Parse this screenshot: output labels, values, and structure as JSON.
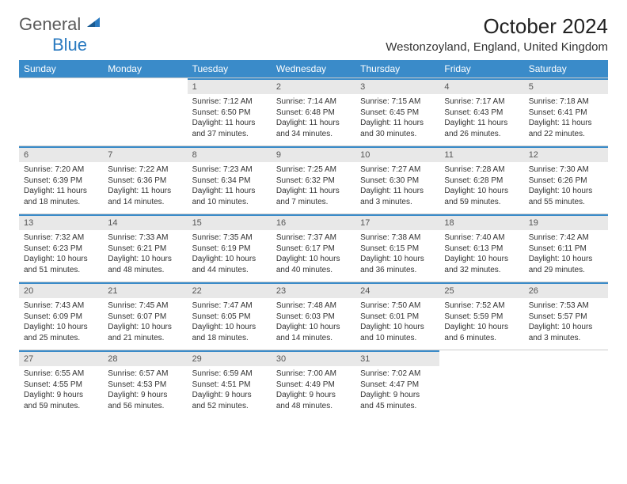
{
  "logo": {
    "text_a": "General",
    "text_b": "Blue"
  },
  "title": "October 2024",
  "location": "Westonzoyland, England, United Kingdom",
  "colors": {
    "header_bg": "#3a8bc9",
    "header_fg": "#ffffff",
    "daynum_bg": "#e8e8e8",
    "daynum_border": "#3a8bc9",
    "body_bg": "#ffffff",
    "text": "#333333"
  },
  "dayNames": [
    "Sunday",
    "Monday",
    "Tuesday",
    "Wednesday",
    "Thursday",
    "Friday",
    "Saturday"
  ],
  "firstDayIndex": 2,
  "days": [
    {
      "n": 1,
      "sunrise": "7:12 AM",
      "sunset": "6:50 PM",
      "daylight": "11 hours and 37 minutes."
    },
    {
      "n": 2,
      "sunrise": "7:14 AM",
      "sunset": "6:48 PM",
      "daylight": "11 hours and 34 minutes."
    },
    {
      "n": 3,
      "sunrise": "7:15 AM",
      "sunset": "6:45 PM",
      "daylight": "11 hours and 30 minutes."
    },
    {
      "n": 4,
      "sunrise": "7:17 AM",
      "sunset": "6:43 PM",
      "daylight": "11 hours and 26 minutes."
    },
    {
      "n": 5,
      "sunrise": "7:18 AM",
      "sunset": "6:41 PM",
      "daylight": "11 hours and 22 minutes."
    },
    {
      "n": 6,
      "sunrise": "7:20 AM",
      "sunset": "6:39 PM",
      "daylight": "11 hours and 18 minutes."
    },
    {
      "n": 7,
      "sunrise": "7:22 AM",
      "sunset": "6:36 PM",
      "daylight": "11 hours and 14 minutes."
    },
    {
      "n": 8,
      "sunrise": "7:23 AM",
      "sunset": "6:34 PM",
      "daylight": "11 hours and 10 minutes."
    },
    {
      "n": 9,
      "sunrise": "7:25 AM",
      "sunset": "6:32 PM",
      "daylight": "11 hours and 7 minutes."
    },
    {
      "n": 10,
      "sunrise": "7:27 AM",
      "sunset": "6:30 PM",
      "daylight": "11 hours and 3 minutes."
    },
    {
      "n": 11,
      "sunrise": "7:28 AM",
      "sunset": "6:28 PM",
      "daylight": "10 hours and 59 minutes."
    },
    {
      "n": 12,
      "sunrise": "7:30 AM",
      "sunset": "6:26 PM",
      "daylight": "10 hours and 55 minutes."
    },
    {
      "n": 13,
      "sunrise": "7:32 AM",
      "sunset": "6:23 PM",
      "daylight": "10 hours and 51 minutes."
    },
    {
      "n": 14,
      "sunrise": "7:33 AM",
      "sunset": "6:21 PM",
      "daylight": "10 hours and 48 minutes."
    },
    {
      "n": 15,
      "sunrise": "7:35 AM",
      "sunset": "6:19 PM",
      "daylight": "10 hours and 44 minutes."
    },
    {
      "n": 16,
      "sunrise": "7:37 AM",
      "sunset": "6:17 PM",
      "daylight": "10 hours and 40 minutes."
    },
    {
      "n": 17,
      "sunrise": "7:38 AM",
      "sunset": "6:15 PM",
      "daylight": "10 hours and 36 minutes."
    },
    {
      "n": 18,
      "sunrise": "7:40 AM",
      "sunset": "6:13 PM",
      "daylight": "10 hours and 32 minutes."
    },
    {
      "n": 19,
      "sunrise": "7:42 AM",
      "sunset": "6:11 PM",
      "daylight": "10 hours and 29 minutes."
    },
    {
      "n": 20,
      "sunrise": "7:43 AM",
      "sunset": "6:09 PM",
      "daylight": "10 hours and 25 minutes."
    },
    {
      "n": 21,
      "sunrise": "7:45 AM",
      "sunset": "6:07 PM",
      "daylight": "10 hours and 21 minutes."
    },
    {
      "n": 22,
      "sunrise": "7:47 AM",
      "sunset": "6:05 PM",
      "daylight": "10 hours and 18 minutes."
    },
    {
      "n": 23,
      "sunrise": "7:48 AM",
      "sunset": "6:03 PM",
      "daylight": "10 hours and 14 minutes."
    },
    {
      "n": 24,
      "sunrise": "7:50 AM",
      "sunset": "6:01 PM",
      "daylight": "10 hours and 10 minutes."
    },
    {
      "n": 25,
      "sunrise": "7:52 AM",
      "sunset": "5:59 PM",
      "daylight": "10 hours and 6 minutes."
    },
    {
      "n": 26,
      "sunrise": "7:53 AM",
      "sunset": "5:57 PM",
      "daylight": "10 hours and 3 minutes."
    },
    {
      "n": 27,
      "sunrise": "6:55 AM",
      "sunset": "4:55 PM",
      "daylight": "9 hours and 59 minutes."
    },
    {
      "n": 28,
      "sunrise": "6:57 AM",
      "sunset": "4:53 PM",
      "daylight": "9 hours and 56 minutes."
    },
    {
      "n": 29,
      "sunrise": "6:59 AM",
      "sunset": "4:51 PM",
      "daylight": "9 hours and 52 minutes."
    },
    {
      "n": 30,
      "sunrise": "7:00 AM",
      "sunset": "4:49 PM",
      "daylight": "9 hours and 48 minutes."
    },
    {
      "n": 31,
      "sunrise": "7:02 AM",
      "sunset": "4:47 PM",
      "daylight": "9 hours and 45 minutes."
    }
  ],
  "labels": {
    "sunrise": "Sunrise:",
    "sunset": "Sunset:",
    "daylight": "Daylight:"
  }
}
